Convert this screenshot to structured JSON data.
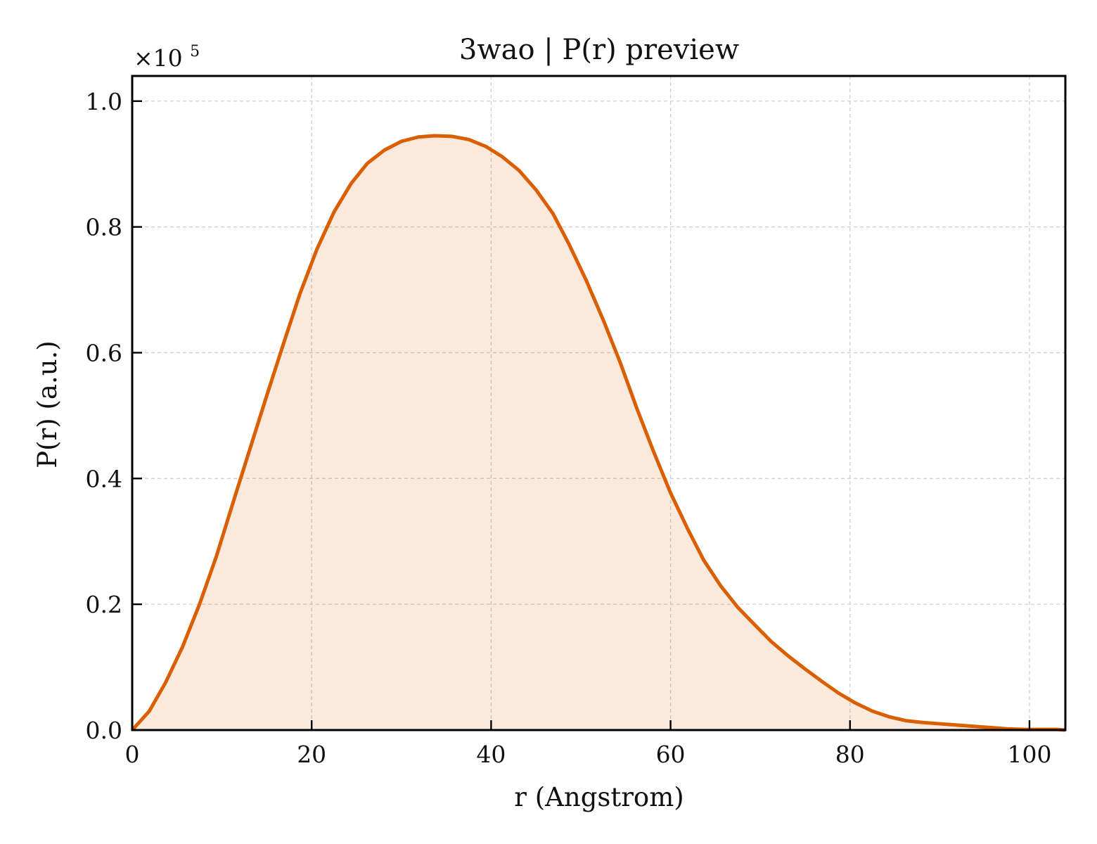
{
  "chart_data": {
    "type": "area",
    "title": "3wao | P(r) preview",
    "xlabel": "r (Angstrom)",
    "ylabel": "P(r) (a.u.)",
    "y_offset_label": "×10",
    "y_offset_exponent": "5",
    "y_scale": 100000,
    "xlim": [
      0,
      104
    ],
    "ylim": [
      0,
      1.04
    ],
    "x_ticks": [
      0,
      20,
      40,
      60,
      80,
      100
    ],
    "x_tick_labels": [
      "0",
      "20",
      "40",
      "60",
      "80",
      "100"
    ],
    "y_ticks": [
      0.0,
      0.2,
      0.4,
      0.6,
      0.8,
      1.0
    ],
    "y_tick_labels": [
      "0.0",
      "0.2",
      "0.4",
      "0.6",
      "0.8",
      "1.0"
    ],
    "grid": true,
    "line_color": "#d95f02",
    "fill_color": "#d95f02",
    "fill_opacity": 0.13,
    "series": [
      {
        "x": [
          0,
          1.9,
          3.7,
          5.6,
          7.5,
          9.4,
          11.2,
          13.1,
          15.0,
          16.9,
          18.7,
          20.6,
          22.5,
          24.4,
          26.2,
          28.1,
          30.0,
          31.9,
          33.7,
          35.6,
          37.5,
          39.4,
          41.2,
          43.1,
          45.0,
          46.9,
          48.7,
          50.6,
          52.5,
          54.4,
          56.2,
          58.1,
          60.0,
          61.9,
          63.7,
          65.6,
          67.5,
          69.4,
          71.2,
          73.1,
          75.0,
          76.9,
          78.7,
          80.6,
          82.5,
          84.4,
          86.2,
          88.1,
          90.0,
          91.9,
          93.7,
          95.6,
          97.5,
          99.4,
          101.2,
          103.1,
          104.0
        ],
        "y": [
          0.0,
          0.03,
          0.075,
          0.132,
          0.2,
          0.277,
          0.36,
          0.446,
          0.532,
          0.616,
          0.694,
          0.765,
          0.824,
          0.869,
          0.901,
          0.922,
          0.936,
          0.943,
          0.945,
          0.944,
          0.939,
          0.928,
          0.912,
          0.89,
          0.859,
          0.821,
          0.772,
          0.715,
          0.652,
          0.584,
          0.513,
          0.443,
          0.377,
          0.32,
          0.27,
          0.229,
          0.195,
          0.167,
          0.141,
          0.118,
          0.097,
          0.077,
          0.059,
          0.043,
          0.03,
          0.021,
          0.015,
          0.012,
          0.01,
          0.008,
          0.006,
          0.004,
          0.002,
          0.001,
          0.001,
          0.001,
          0.0
        ]
      }
    ]
  }
}
